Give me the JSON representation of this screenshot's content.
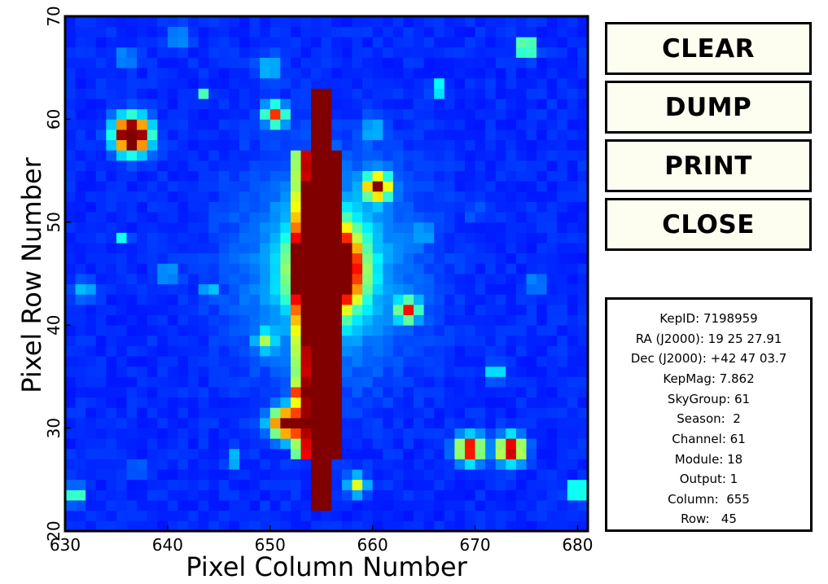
{
  "plot": {
    "xlabel": "Pixel Column Number",
    "ylabel": "Pixel Row Number",
    "x_ticks": [
      "630",
      "640",
      "650",
      "660",
      "670",
      "680"
    ],
    "y_ticks": [
      "20",
      "30",
      "40",
      "50",
      "60",
      "70"
    ],
    "xlim": [
      630,
      681
    ],
    "ylim": [
      20,
      70
    ],
    "colormap": "jet",
    "colors": {
      "background": "#0000a8",
      "saturated": "#800000"
    }
  },
  "buttons": {
    "clear": "CLEAR",
    "dump": "DUMP",
    "print": "PRINT",
    "close": "CLOSE"
  },
  "info": {
    "kepid": "KepID: 7198959",
    "ra": "RA (J2000): 19 25 27.91",
    "dec": "Dec (J2000): +42 47 03.7",
    "kepmag": "KepMag: 7.862",
    "skygroup": "SkyGroup: 61",
    "season": "Season:  2",
    "channel": "Channel: 61",
    "module": "Module: 18",
    "output": "Output: 1",
    "column": "Column:  655",
    "row": "Row:   45"
  }
}
